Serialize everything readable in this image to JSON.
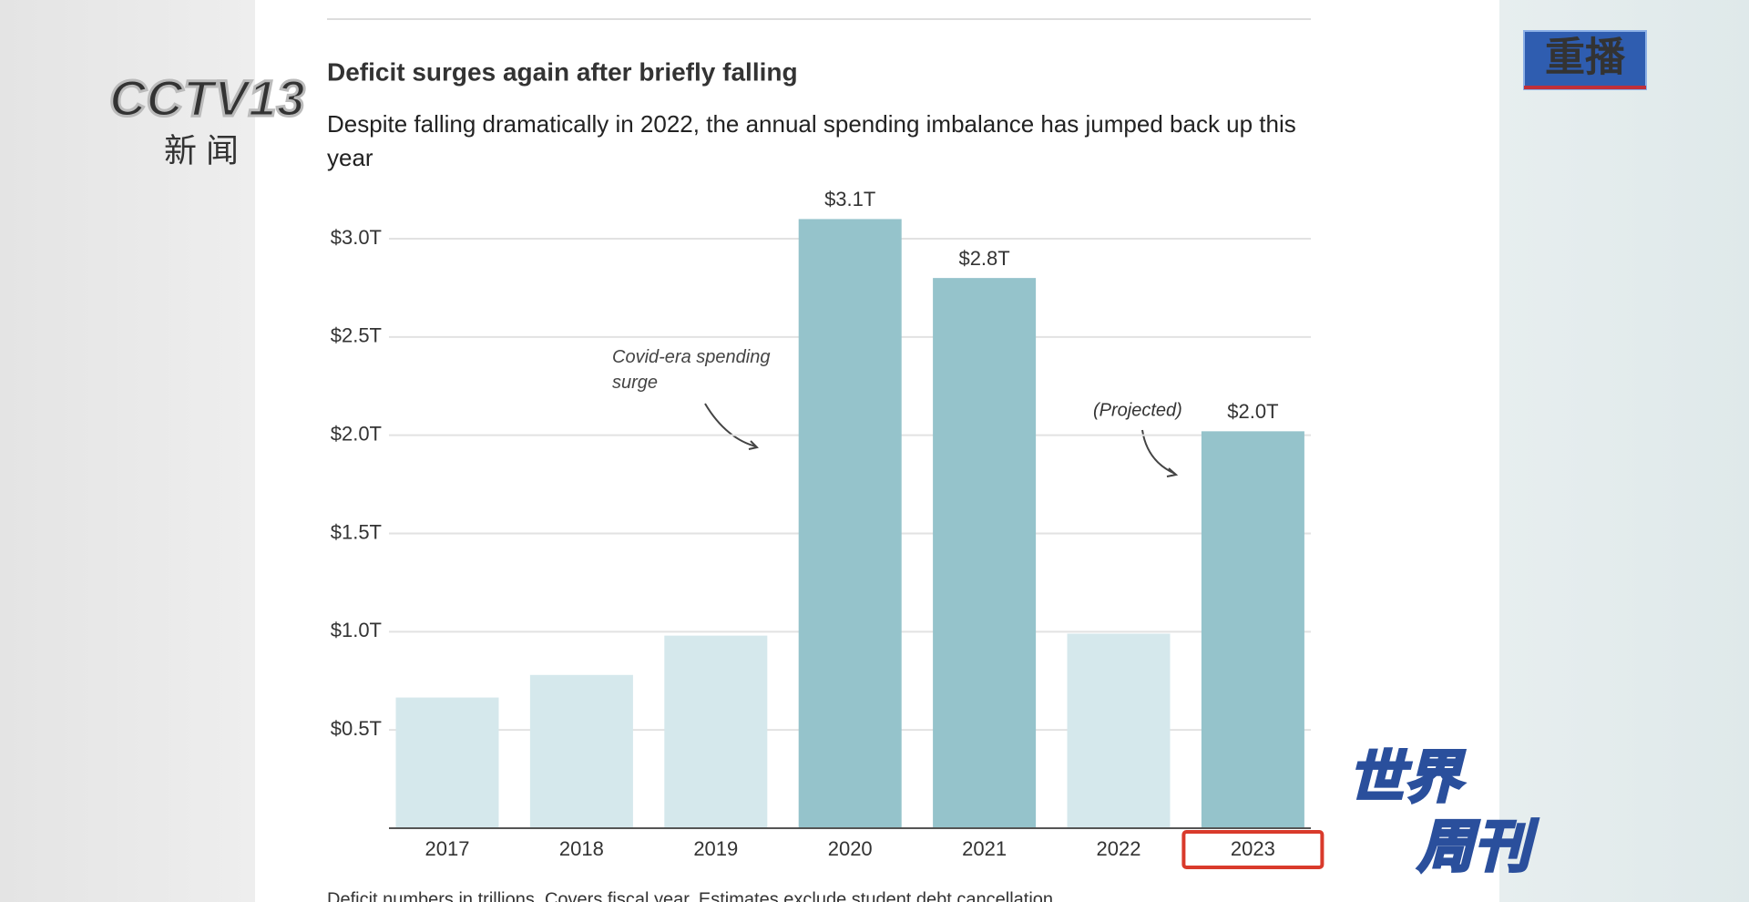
{
  "chart_data": {
    "type": "bar",
    "title": "Deficit surges again after briefly falling",
    "subtitle": "Despite falling dramatically in 2022, the annual spending imbalance has jumped back up this year",
    "categories": [
      "2017",
      "2018",
      "2019",
      "2020",
      "2021",
      "2022",
      "2023"
    ],
    "values": [
      0.665,
      0.78,
      0.98,
      3.1,
      2.8,
      0.99,
      2.02
    ],
    "value_labels": [
      null,
      null,
      null,
      "$3.1T",
      "$2.8T",
      null,
      "$2.0T"
    ],
    "colors": [
      "#d5e8ec",
      "#d5e8ec",
      "#d5e8ec",
      "#95c3cb",
      "#95c3cb",
      "#d5e8ec",
      "#95c3cb"
    ],
    "ylim": [
      0,
      3.0
    ],
    "yticks": [
      {
        "value": 0.5,
        "label": "$0.5T"
      },
      {
        "value": 1.0,
        "label": "$1.0T"
      },
      {
        "value": 1.5,
        "label": "$1.5T"
      },
      {
        "value": 2.0,
        "label": "$2.0T"
      },
      {
        "value": 2.5,
        "label": "$2.5T"
      },
      {
        "value": 3.0,
        "label": "$3.0T"
      }
    ],
    "grid": true,
    "annotations": [
      "Covid-era spending surge",
      "(Projected)"
    ],
    "footnote": "Deficit numbers in trillions. Covers fiscal year. Estimates exclude student debt cancellation."
  },
  "overlay": {
    "channel_logo": "CCTV13",
    "channel_name": "新 闻",
    "badge": "重播",
    "program_line1": "世界",
    "program_line2": "周刊"
  }
}
